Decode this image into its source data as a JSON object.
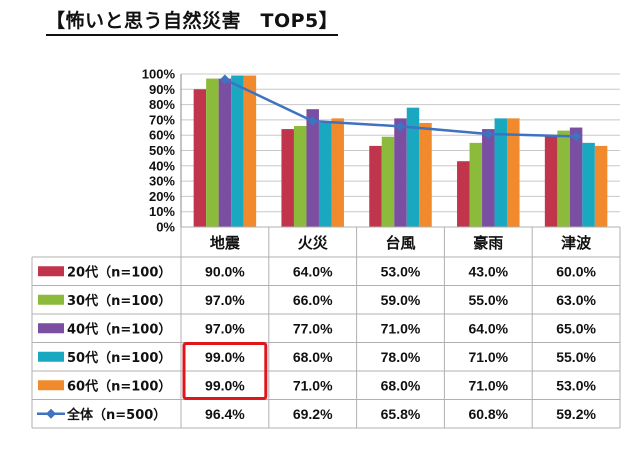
{
  "title": "【怖いと思う自然災害　TOP5】",
  "chart_data": {
    "type": "bar",
    "title": "【怖いと思う自然災害　TOP5】",
    "categories": [
      "地震",
      "火災",
      "台風",
      "豪雨",
      "津波"
    ],
    "ylim": [
      0,
      100
    ],
    "yticks": [
      "100%",
      "90%",
      "80%",
      "70%",
      "60%",
      "50%",
      "40%",
      "30%",
      "20%",
      "10%",
      "0%"
    ],
    "grid": true,
    "legend": "table-below",
    "series": [
      {
        "name": "20代（n=100）",
        "type": "bar",
        "color": "#c0344c",
        "values": [
          90.0,
          64.0,
          53.0,
          43.0,
          60.0
        ],
        "labels": [
          "90.0%",
          "64.0%",
          "53.0%",
          "43.0%",
          "60.0%"
        ]
      },
      {
        "name": "30代（n=100）",
        "type": "bar",
        "color": "#8cba3a",
        "values": [
          97.0,
          66.0,
          59.0,
          55.0,
          63.0
        ],
        "labels": [
          "97.0%",
          "66.0%",
          "59.0%",
          "55.0%",
          "63.0%"
        ]
      },
      {
        "name": "40代（n=100）",
        "type": "bar",
        "color": "#7a4ea0",
        "values": [
          97.0,
          77.0,
          71.0,
          64.0,
          65.0
        ],
        "labels": [
          "97.0%",
          "77.0%",
          "71.0%",
          "64.0%",
          "65.0%"
        ]
      },
      {
        "name": "50代（n=100）",
        "type": "bar",
        "color": "#1aa7c0",
        "values": [
          99.0,
          68.0,
          78.0,
          71.0,
          55.0
        ],
        "labels": [
          "99.0%",
          "68.0%",
          "78.0%",
          "71.0%",
          "55.0%"
        ]
      },
      {
        "name": "60代（n=100）",
        "type": "bar",
        "color": "#f08a2c",
        "values": [
          99.0,
          71.0,
          68.0,
          71.0,
          53.0
        ],
        "labels": [
          "99.0%",
          "71.0%",
          "68.0%",
          "71.0%",
          "53.0%"
        ]
      },
      {
        "name": "全体（n=500）",
        "type": "line",
        "color": "#3f72c0",
        "values": [
          96.4,
          69.2,
          65.8,
          60.8,
          59.2
        ],
        "labels": [
          "96.4%",
          "69.2%",
          "65.8%",
          "60.8%",
          "59.2%"
        ]
      }
    ],
    "highlight": {
      "color": "#e0161c",
      "category_index": 0,
      "series_indices": [
        3,
        4
      ]
    }
  }
}
